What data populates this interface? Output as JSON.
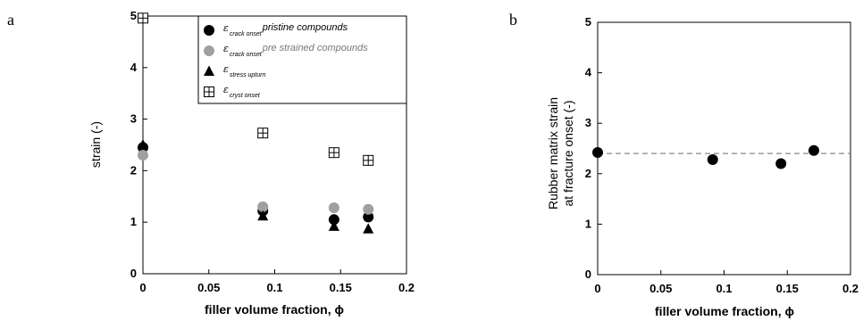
{
  "chart_data": [
    {
      "panel_label": "a",
      "type": "scatter",
      "xlabel": "filler volume fraction, ϕ",
      "ylabel": "strain (-)",
      "xlim": [
        0,
        0.2
      ],
      "ylim": [
        0,
        5
      ],
      "x_ticks": [
        "0",
        "0.05",
        "0.1",
        "0.15",
        "0.2"
      ],
      "y_ticks": [
        "0",
        "1",
        "2",
        "3",
        "4",
        "5"
      ],
      "legend_position": "top-right",
      "series": [
        {
          "symbol": "ε",
          "subscript": "crack onset",
          "name": "pristine compounds",
          "marker": "circle",
          "color": "#000000",
          "points": [
            [
              0,
              2.45
            ],
            [
              0.091,
              1.22
            ],
            [
              0.145,
              1.05
            ],
            [
              0.171,
              1.1
            ]
          ]
        },
        {
          "symbol": "ε",
          "subscript": "crack onset",
          "name": "pre strained compounds",
          "marker": "circle",
          "color": "#a0a0a0",
          "points": [
            [
              0,
              2.3
            ],
            [
              0.091,
              1.3
            ],
            [
              0.145,
              1.28
            ],
            [
              0.171,
              1.25
            ]
          ]
        },
        {
          "symbol": "ε",
          "subscript": "stress upturn",
          "name": "",
          "marker": "triangle",
          "color": "#000000",
          "points": [
            [
              0,
              2.5
            ],
            [
              0.091,
              1.12
            ],
            [
              0.145,
              0.92
            ],
            [
              0.171,
              0.87
            ]
          ]
        },
        {
          "symbol": "ε",
          "subscript": "cryst onset",
          "name": "",
          "marker": "boxplus",
          "color": "#000000",
          "points": [
            [
              0,
              4.96
            ],
            [
              0.091,
              2.73
            ],
            [
              0.145,
              2.35
            ],
            [
              0.171,
              2.2
            ]
          ]
        }
      ]
    },
    {
      "panel_label": "b",
      "type": "scatter",
      "xlabel": "filler volume fraction, ϕ",
      "ylabel_lines": [
        "Rubber matrix strain",
        "at fracture onset (-)"
      ],
      "xlim": [
        0,
        0.2
      ],
      "ylim": [
        0,
        5
      ],
      "x_ticks": [
        "0",
        "0.05",
        "0.1",
        "0.15",
        "0.2"
      ],
      "y_ticks": [
        "0",
        "1",
        "2",
        "3",
        "4",
        "5"
      ],
      "reference_line_y": 2.4,
      "reference_line_style": "dashed",
      "series": [
        {
          "name": "",
          "marker": "circle",
          "color": "#000000",
          "points": [
            [
              0,
              2.42
            ],
            [
              0.091,
              2.28
            ],
            [
              0.145,
              2.2
            ],
            [
              0.171,
              2.46
            ]
          ]
        }
      ]
    }
  ]
}
